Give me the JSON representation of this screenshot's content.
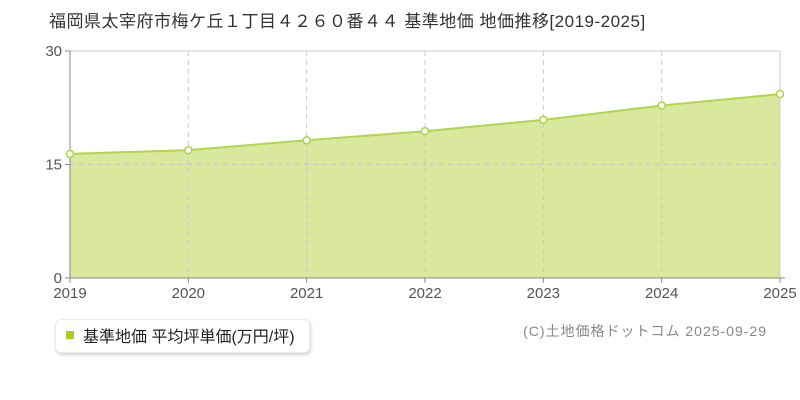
{
  "chart_data": {
    "type": "area",
    "title": "福岡県太宰府市梅ケ丘１丁目４２６０番４４ 基準地価 地価推移[2019-2025]",
    "x": [
      2019,
      2020,
      2021,
      2022,
      2023,
      2024,
      2025
    ],
    "values": [
      16.4,
      16.9,
      18.2,
      19.4,
      20.9,
      22.8,
      24.3
    ],
    "series_name": "基準地価 平均坪単価(万円/坪)",
    "xlabel": "",
    "ylabel": "",
    "ylim": [
      0,
      30
    ],
    "yticks": [
      0,
      15,
      30
    ],
    "xticks": [
      2019,
      2020,
      2021,
      2022,
      2023,
      2024,
      2025
    ],
    "grid": true,
    "legend_position": "bottom-left"
  },
  "legend": {
    "label": "基準地価 平均坪単価(万円/坪)"
  },
  "footer": {
    "copyright": "(C)土地価格ドットコム 2025-09-29"
  },
  "colors": {
    "area_fill": "#d9e89c",
    "line": "#b3d54c",
    "marker_fill": "#ffffff",
    "legend_swatch": "#a8cc2a",
    "grid": "#c6c6c6",
    "border": "#cccccc",
    "axis": "#888888",
    "tick_text": "#555555",
    "title_text": "#333333",
    "copyright_text": "#888888"
  }
}
